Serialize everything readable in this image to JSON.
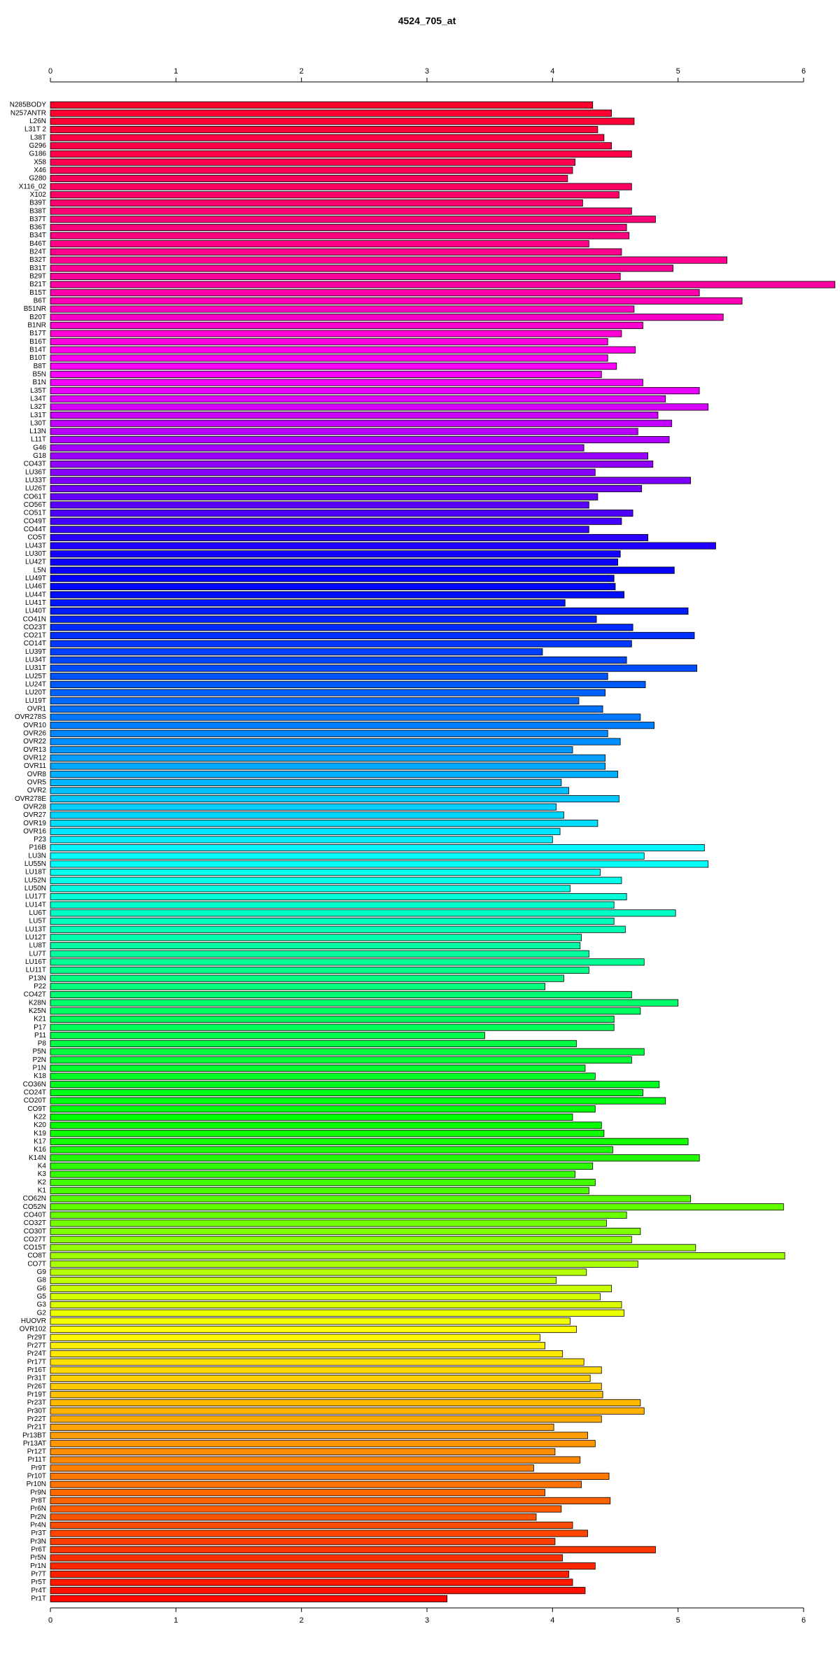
{
  "chart_data": {
    "type": "bar",
    "orientation": "horizontal",
    "title": "4524_705_at",
    "categories": [
      "N285BODY",
      "N257ANTR",
      "L26N",
      "L31T 2",
      "L38T",
      "G296",
      "G186",
      "X58",
      "X46",
      "G280",
      "X116_02",
      "X102",
      "B39T",
      "B38T",
      "B37T",
      "B36T",
      "B34T",
      "B46T",
      "B24T",
      "B32T",
      "B31T",
      "B29T",
      "B21T",
      "B15T",
      "B6T",
      "B51NR",
      "B20T",
      "B1NR",
      "B17T",
      "B16T",
      "B14T",
      "B10T",
      "B8T",
      "B5N",
      "B1N",
      "L35T",
      "L34T",
      "L32T",
      "L31T",
      "L30T",
      "L13N",
      "L11T",
      "G46",
      "G18",
      "CO43T",
      "LU36T",
      "LU33T",
      "LU26T",
      "CO61T",
      "CO56T",
      "CO51T",
      "CO49T",
      "CO44T",
      "CO5T",
      "LU43T",
      "LU30T",
      "LU42T",
      "L5N",
      "LU49T",
      "LU46T",
      "LU44T",
      "LU41T",
      "LU40T",
      "CO41N",
      "CO23T",
      "CO21T",
      "CO14T",
      "LU39T",
      "LU34T",
      "LU31T",
      "LU25T",
      "LU24T",
      "LU20T",
      "LU19T",
      "OVR1",
      "OVR278S",
      "OVR10",
      "OVR26",
      "OVR22",
      "OVR13",
      "OVR12",
      "OVR11",
      "OVR8",
      "OVR5",
      "OVR2",
      "OVR278E",
      "OVR28",
      "OVR27",
      "OVR19",
      "OVR16",
      "P23",
      "P16B",
      "LU3N",
      "LU55N",
      "LU18T",
      "LU52N",
      "LU50N",
      "LU17T",
      "LU14T",
      "LU6T",
      "LU5T",
      "LU13T",
      "LU12T",
      "LU8T",
      "LU7T",
      "LU16T",
      "LU11T",
      "P13N",
      "P22",
      "CO42T",
      "K28N",
      "K25N",
      "K21",
      "P17",
      "P11",
      "P8",
      "P5N",
      "P2N",
      "P1N",
      "K18",
      "CO36N",
      "CO24T",
      "CO20T",
      "CO9T",
      "K22",
      "K20",
      "K19",
      "K17",
      "K16",
      "K14N",
      "K4",
      "K3",
      "K2",
      "K1",
      "CO62N",
      "CO52N",
      "CO40T",
      "CO32T",
      "CO30T",
      "CO27T",
      "CO15T",
      "CO8T",
      "CO7T",
      "G9",
      "G8",
      "G6",
      "G5",
      "G3",
      "G2",
      "HUOVR",
      "OVR102",
      "Pr29T",
      "Pr27T",
      "Pr24T",
      "Pr17T",
      "Pr16T",
      "Pr31T",
      "Pr26T",
      "Pr19T",
      "Pr23T",
      "Pr30T",
      "Pr22T",
      "Pr21T",
      "Pr13BT",
      "Pr13AT",
      "Pr12T",
      "Pr11T",
      "Pr9T",
      "Pr10T",
      "Pr10N",
      "Pr9N",
      "Pr8T",
      "Pr6N",
      "Pr2N",
      "Pr4N",
      "Pr3T",
      "Pr3N",
      "Pr6T",
      "Pr5N",
      "Pr1N",
      "Pr7T",
      "Pr5T",
      "Pr4T",
      "Pr1T"
    ],
    "values": [
      4.32,
      4.47,
      4.65,
      4.36,
      4.41,
      4.47,
      4.63,
      4.18,
      4.16,
      4.12,
      4.63,
      4.53,
      4.24,
      4.63,
      4.82,
      4.59,
      4.61,
      4.29,
      4.55,
      5.39,
      4.96,
      4.54,
      6.25,
      5.17,
      5.51,
      4.65,
      5.36,
      4.72,
      4.55,
      4.44,
      4.66,
      4.44,
      4.51,
      4.39,
      4.72,
      5.17,
      4.9,
      5.24,
      4.84,
      4.95,
      4.68,
      4.93,
      4.25,
      4.76,
      4.8,
      4.34,
      5.1,
      4.71,
      4.36,
      4.29,
      4.64,
      4.55,
      4.29,
      4.76,
      5.3,
      4.54,
      4.52,
      4.97,
      4.49,
      4.5,
      4.57,
      4.1,
      5.08,
      4.35,
      4.64,
      5.13,
      4.63,
      3.92,
      4.59,
      5.15,
      4.44,
      4.74,
      4.42,
      4.21,
      4.4,
      4.7,
      4.81,
      4.44,
      4.54,
      4.16,
      4.42,
      4.42,
      4.52,
      4.07,
      4.13,
      4.53,
      4.03,
      4.09,
      4.36,
      4.06,
      4.0,
      5.21,
      4.73,
      5.24,
      4.38,
      4.55,
      4.14,
      4.59,
      4.49,
      4.98,
      4.49,
      4.58,
      4.23,
      4.22,
      4.29,
      4.73,
      4.29,
      4.09,
      3.94,
      4.63,
      5.0,
      4.7,
      4.49,
      4.49,
      3.46,
      4.19,
      4.73,
      4.63,
      4.26,
      4.34,
      4.85,
      4.72,
      4.9,
      4.34,
      4.16,
      4.39,
      4.41,
      5.08,
      4.48,
      5.17,
      4.32,
      4.18,
      4.34,
      4.29,
      5.1,
      5.84,
      4.59,
      4.43,
      4.7,
      4.63,
      5.14,
      5.85,
      4.68,
      4.27,
      4.03,
      4.47,
      4.38,
      4.55,
      4.57,
      4.14,
      4.19,
      3.9,
      3.94,
      4.08,
      4.25,
      4.39,
      4.3,
      4.39,
      4.4,
      4.7,
      4.73,
      4.39,
      4.01,
      4.28,
      4.34,
      4.02,
      4.22,
      3.85,
      4.45,
      4.23,
      3.94,
      4.46,
      4.07,
      3.87,
      4.16,
      4.28,
      4.02,
      4.82,
      4.08,
      4.34,
      4.13,
      4.16,
      4.26,
      3.16
    ],
    "colors": [
      "#ff002a",
      "#ff0030",
      "#ff0035",
      "#ff003b",
      "#ff0040",
      "#ff0046",
      "#ff004b",
      "#ff0050",
      "#ff0056",
      "#ff005b",
      "#ff0060",
      "#ff0066",
      "#ff006c",
      "#ff0071",
      "#ff0076",
      "#ff007c",
      "#ff0081",
      "#ff0086",
      "#ff008c",
      "#ff0091",
      "#ff0097",
      "#ff009c",
      "#ff00a2",
      "#ff00aa",
      "#ff00b3",
      "#ff00bc",
      "#ff00c5",
      "#ff00ce",
      "#ff00d7",
      "#ff00df",
      "#ff00e8",
      "#ff00f1",
      "#ff00fa",
      "#fc00ff",
      "#f300ff",
      "#ea00ff",
      "#e000ff",
      "#d600ff",
      "#cc00ff",
      "#c300ff",
      "#b900ff",
      "#af00ff",
      "#a500ff",
      "#9c00ff",
      "#9200ff",
      "#8800ff",
      "#7d00ff",
      "#7100ff",
      "#6600ff",
      "#5a00ff",
      "#4f00ff",
      "#4300ff",
      "#3800ff",
      "#2c00ff",
      "#2100ff",
      "#1500ff",
      "#0e00ff",
      "#0700ff",
      "#0000ff",
      "#0007ff",
      "#000eff",
      "#0015ff",
      "#001cff",
      "#0023ff",
      "#002aff",
      "#0031ff",
      "#0038ff",
      "#003fff",
      "#0046ff",
      "#004dff",
      "#0054ff",
      "#005bff",
      "#0062ff",
      "#0069ff",
      "#0070ff",
      "#0077ff",
      "#007fff",
      "#0087ff",
      "#008fff",
      "#0097ff",
      "#009fff",
      "#00a7ff",
      "#00afff",
      "#00b7ff",
      "#00bfff",
      "#00c7ff",
      "#00cfff",
      "#00d7ff",
      "#00dfff",
      "#00e7ff",
      "#00efff",
      "#00f7ff",
      "#00ffff",
      "#00fff7",
      "#00ffee",
      "#00ffe6",
      "#00ffde",
      "#00ffd6",
      "#00ffcd",
      "#00ffc5",
      "#00ffbd",
      "#00ffb5",
      "#00ffac",
      "#00ffa4",
      "#00ff9c",
      "#00ff93",
      "#00ff8b",
      "#00ff83",
      "#00ff7b",
      "#00ff72",
      "#00ff6a",
      "#00ff63",
      "#00ff5b",
      "#00ff54",
      "#00ff4d",
      "#00ff45",
      "#00ff3e",
      "#00ff36",
      "#00ff2f",
      "#00ff27",
      "#00ff20",
      "#00ff18",
      "#00ff11",
      "#00ff0a",
      "#00ff02",
      "#05ff00",
      "#0dff00",
      "#14ff00",
      "#1cff00",
      "#23ff00",
      "#2bff00",
      "#35ff00",
      "#40ff00",
      "#4aff00",
      "#55ff00",
      "#60ff00",
      "#6aff00",
      "#75ff00",
      "#80ff00",
      "#8aff00",
      "#95ff00",
      "#9fff00",
      "#aaff00",
      "#b5ff00",
      "#bfff00",
      "#caff00",
      "#d5ff00",
      "#dfff00",
      "#eaff00",
      "#f4ff00",
      "#ffff00",
      "#fff700",
      "#fff000",
      "#ffe800",
      "#ffe000",
      "#ffd900",
      "#ffd100",
      "#ffc900",
      "#ffc200",
      "#ffba00",
      "#ffb300",
      "#ffab00",
      "#ffa400",
      "#ff9d00",
      "#ff9600",
      "#ff8e00",
      "#ff8700",
      "#ff8000",
      "#ff7900",
      "#ff7100",
      "#ff6a00",
      "#ff6300",
      "#ff5b00",
      "#ff5400",
      "#ff4c00",
      "#ff4500",
      "#ff3d00",
      "#ff3600",
      "#ff2e00",
      "#ff2700",
      "#ff1f00",
      "#ff1700",
      "#ff1000",
      "#ff0800"
    ],
    "xlim": [
      0,
      6
    ],
    "xticks": [
      0,
      1,
      2,
      3,
      4,
      5,
      6
    ]
  }
}
